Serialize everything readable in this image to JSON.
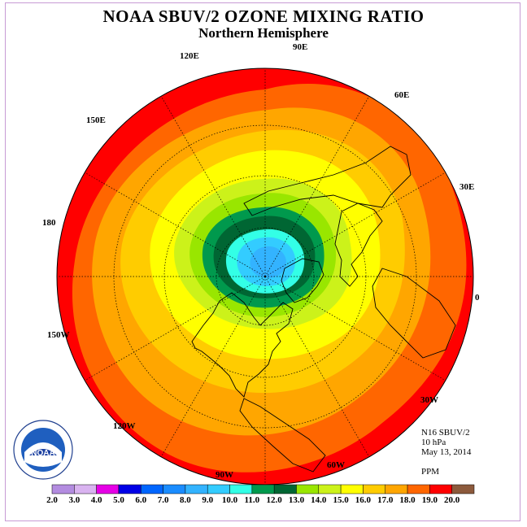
{
  "header": {
    "title": "NOAA SBUV/2 OZONE MIXING RATIO",
    "subtitle": "Northern Hemisphere"
  },
  "map": {
    "projection": "north polar stereographic",
    "longitude_labels": [
      "90E",
      "60E",
      "30E",
      "0",
      "30W",
      "60W",
      "90W",
      "120W",
      "150W",
      "180",
      "150E",
      "120E"
    ],
    "contour_levels_ppm": [
      11.0,
      12.0,
      13.0,
      14.0,
      15.0,
      16.0,
      17.0,
      18.0,
      19.0,
      20.0
    ],
    "polar_center_value_range_ppm": [
      8.0,
      10.0
    ]
  },
  "info": {
    "instrument": "N16 SBUV/2",
    "pressure": "10 hPa",
    "date": "May 13, 2014",
    "units": "PPM"
  },
  "colorbar": {
    "tick_labels": [
      "2.0",
      "3.0",
      "4.0",
      "5.0",
      "6.0",
      "7.0",
      "8.0",
      "9.0",
      "10.0",
      "11.0",
      "12.0",
      "13.0",
      "14.0",
      "15.0",
      "16.0",
      "17.0",
      "18.0",
      "19.0",
      "20.0"
    ],
    "colors": [
      "#b38ce0",
      "#d9b3f0",
      "#e600e6",
      "#0000e6",
      "#0066ff",
      "#1a8cff",
      "#33b3ff",
      "#33ccff",
      "#33ffe6",
      "#00994d",
      "#006633",
      "#99e600",
      "#ccf21a",
      "#ffff00",
      "#ffcc00",
      "#ffa600",
      "#ff6600",
      "#ff0000",
      "#8c5a3c"
    ]
  },
  "logo": {
    "text": "NOAA"
  }
}
